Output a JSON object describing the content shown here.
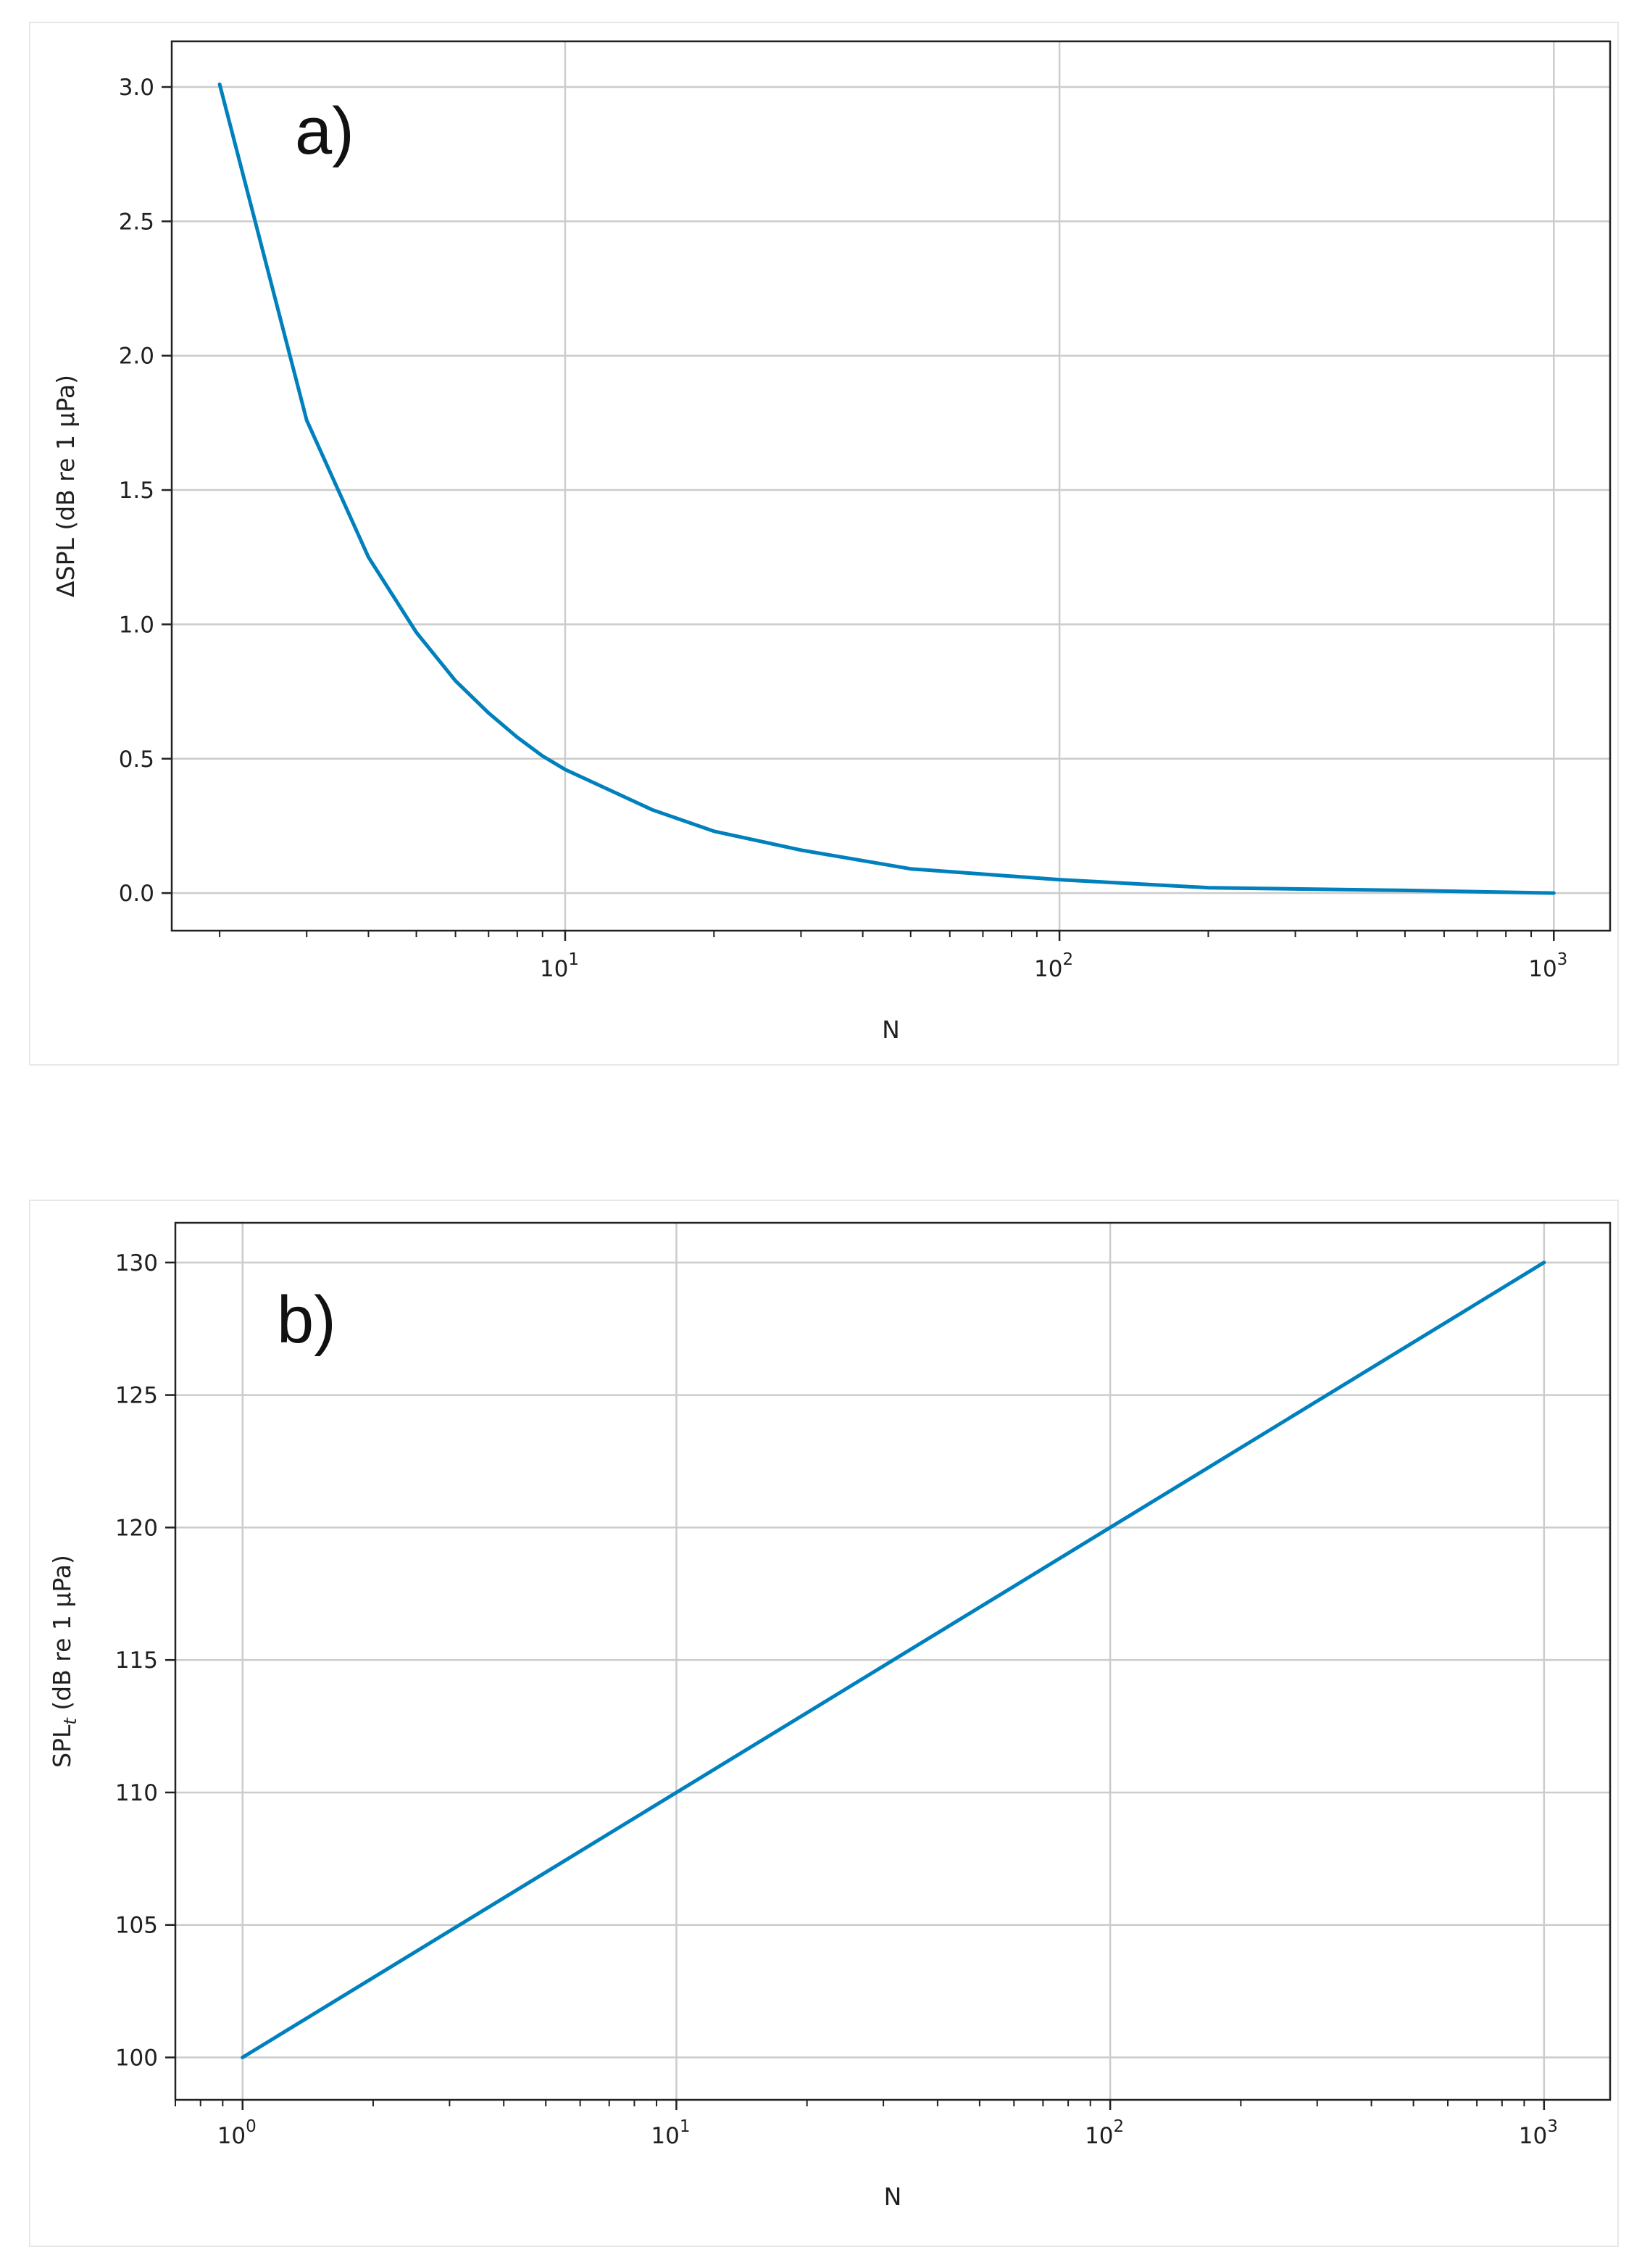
{
  "colors": {
    "line": "#0080BD",
    "grid": "#cccccc",
    "axes": "#222222"
  },
  "chart_data": [
    {
      "type": "line",
      "panel_label": "a)",
      "xlabel": "N",
      "ylabel_main": "ΔSPL (dB re 1 µPa)",
      "ylabel_sub": "",
      "x_scale": "log",
      "xlim": [
        1.6,
        1300
      ],
      "ylim": [
        -0.14,
        3.17
      ],
      "grid": true,
      "x_ticks": [
        {
          "value": 10,
          "base": "10",
          "exp": "1"
        },
        {
          "value": 100,
          "base": "10",
          "exp": "2"
        },
        {
          "value": 1000,
          "base": "10",
          "exp": "3"
        }
      ],
      "y_ticks": [
        {
          "value": 0.0,
          "label": "0.0"
        },
        {
          "value": 0.5,
          "label": "0.5"
        },
        {
          "value": 1.0,
          "label": "1.0"
        },
        {
          "value": 1.5,
          "label": "1.5"
        },
        {
          "value": 2.0,
          "label": "2.0"
        },
        {
          "value": 2.5,
          "label": "2.5"
        },
        {
          "value": 3.0,
          "label": "3.0"
        }
      ],
      "series": [
        {
          "x": [
            2,
            3,
            4,
            5,
            6,
            7,
            8,
            9,
            10,
            15,
            20,
            30,
            50,
            100,
            200,
            500,
            1000
          ],
          "y": [
            3.01,
            1.76,
            1.25,
            0.97,
            0.79,
            0.67,
            0.58,
            0.51,
            0.46,
            0.31,
            0.23,
            0.16,
            0.09,
            0.05,
            0.02,
            0.01,
            0.0
          ]
        }
      ]
    },
    {
      "type": "line",
      "panel_label": "b)",
      "xlabel": "N",
      "ylabel_main": "SPL",
      "ylabel_sub": "t",
      "ylabel_rest": " (dB re 1 µPa)",
      "x_scale": "log",
      "xlim": [
        0.7,
        1420
      ],
      "ylim": [
        98.4,
        131.5
      ],
      "grid": true,
      "x_ticks": [
        {
          "value": 1,
          "base": "10",
          "exp": "0"
        },
        {
          "value": 10,
          "base": "10",
          "exp": "1"
        },
        {
          "value": 100,
          "base": "10",
          "exp": "2"
        },
        {
          "value": 1000,
          "base": "10",
          "exp": "3"
        }
      ],
      "y_ticks": [
        {
          "value": 100,
          "label": "100"
        },
        {
          "value": 105,
          "label": "105"
        },
        {
          "value": 110,
          "label": "110"
        },
        {
          "value": 115,
          "label": "115"
        },
        {
          "value": 120,
          "label": "120"
        },
        {
          "value": 125,
          "label": "125"
        },
        {
          "value": 130,
          "label": "130"
        }
      ],
      "series": [
        {
          "x": [
            1,
            10,
            100,
            1000
          ],
          "y": [
            100,
            110,
            120,
            130
          ]
        }
      ]
    }
  ]
}
